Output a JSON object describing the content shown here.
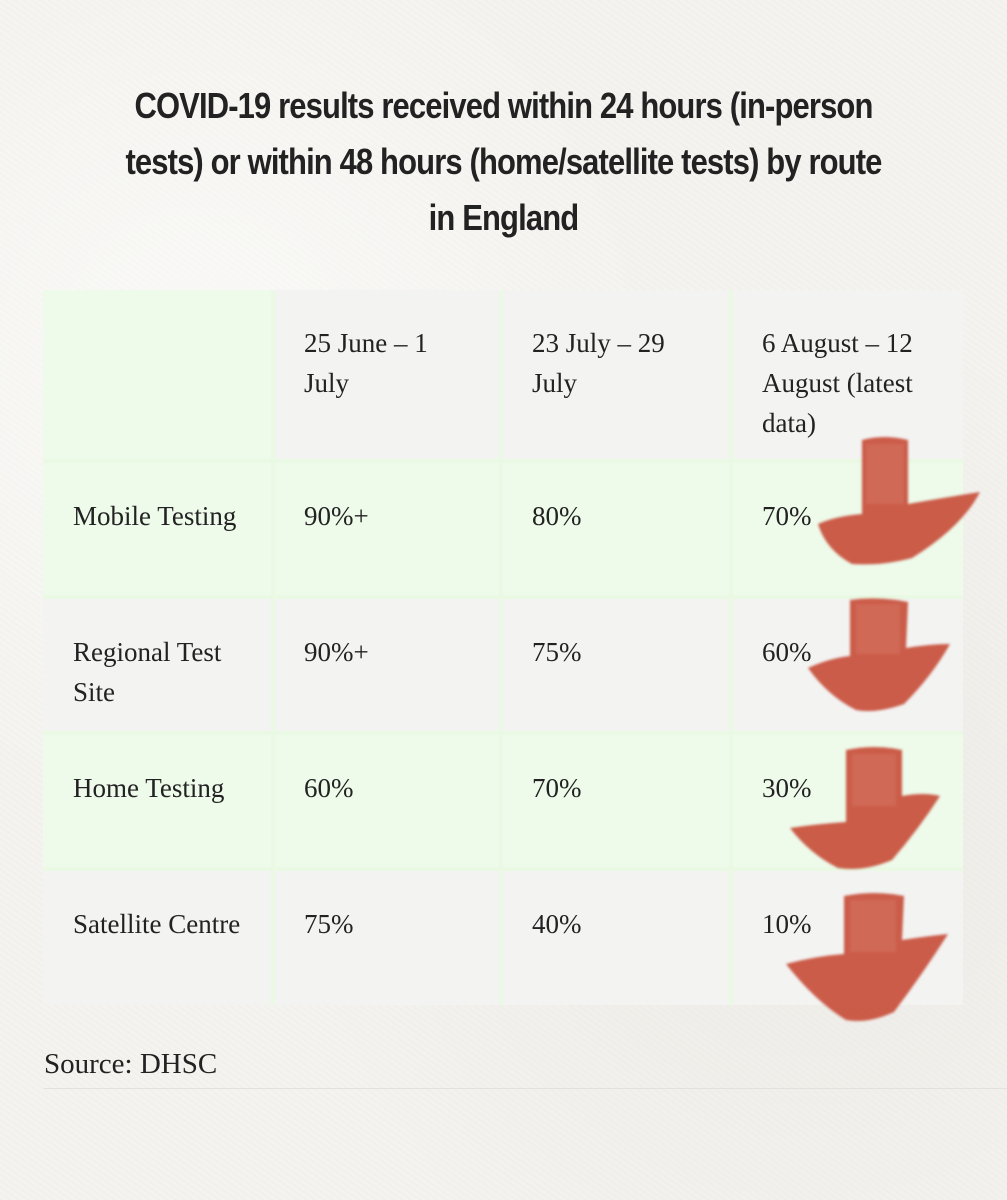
{
  "title": "COVID-19 results received within 24 hours (in-person tests) or within 48 hours (home/satellite tests) by route in England",
  "table": {
    "columns": [
      "",
      "25 June – 1 July",
      "23 July – 29 July",
      "6 August – 12 August (latest data)"
    ],
    "rows": [
      {
        "route": "Mobile Testing",
        "values": [
          "90%+",
          "80%",
          "70%"
        ]
      },
      {
        "route": "Regional Test Site",
        "values": [
          "90%+",
          "75%",
          "60%"
        ]
      },
      {
        "route": "Home Testing",
        "values": [
          "60%",
          "70%",
          "30%"
        ]
      },
      {
        "route": "Satellite Centre",
        "values": [
          "75%",
          "40%",
          "10%"
        ]
      }
    ]
  },
  "source": "Source: DHSC",
  "annotations": {
    "arrow_icon": "down-arrow-icon",
    "arrow_color": "#c8533f"
  }
}
